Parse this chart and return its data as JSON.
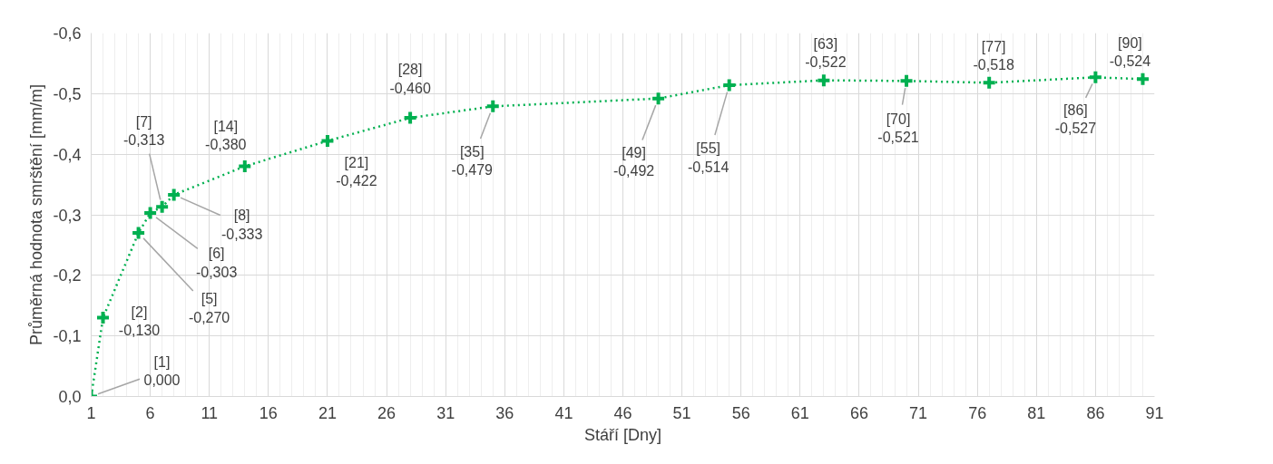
{
  "chart_data": {
    "type": "line",
    "xlabel": "Stáří [Dny]",
    "ylabel": "Průměrná hodnota smrštění [mm/m]",
    "x": [
      1,
      2,
      5,
      6,
      7,
      8,
      14,
      21,
      28,
      35,
      49,
      55,
      63,
      70,
      77,
      86,
      90
    ],
    "series": [
      {
        "color": "#00b050",
        "values": [
          0.0,
          -0.13,
          -0.27,
          -0.303,
          -0.313,
          -0.333,
          -0.38,
          -0.422,
          -0.46,
          -0.479,
          -0.492,
          -0.514,
          -0.522,
          -0.521,
          -0.518,
          -0.527,
          -0.524
        ],
        "value_labels": [
          "[1]\n0,000",
          "[2]\n-0,130",
          "[5]\n-0,270",
          "[6]\n-0,303",
          "[7]\n-0,313",
          "[8]\n-0,333",
          "[14]\n-0,380",
          "[21]\n-0,422",
          "[28]\n-0,460",
          "[35]\n-0,479",
          "[49]\n-0,492",
          "[55]\n-0,514",
          "[63]\n-0,522",
          "[70]\n-0,521",
          "[77]\n-0,518",
          "[86]\n-0,527",
          "[90]\n-0,524"
        ]
      }
    ],
    "xlim": [
      1,
      91
    ],
    "xticks": [
      1,
      6,
      11,
      16,
      21,
      26,
      31,
      36,
      41,
      46,
      51,
      56,
      61,
      66,
      71,
      76,
      81,
      86,
      91
    ],
    "ylim": [
      0,
      -0.6
    ],
    "yticks": [
      {
        "value": 0,
        "label": "0,0"
      },
      {
        "value": -0.1,
        "label": "-0,1"
      },
      {
        "value": -0.2,
        "label": "-0,2"
      },
      {
        "value": -0.3,
        "label": "-0,3"
      },
      {
        "value": -0.4,
        "label": "-0,4"
      },
      {
        "value": -0.5,
        "label": "-0,5"
      },
      {
        "value": -0.6,
        "label": "-0,6"
      }
    ],
    "grid": true,
    "marker": "cross",
    "line_style": "dotted"
  }
}
